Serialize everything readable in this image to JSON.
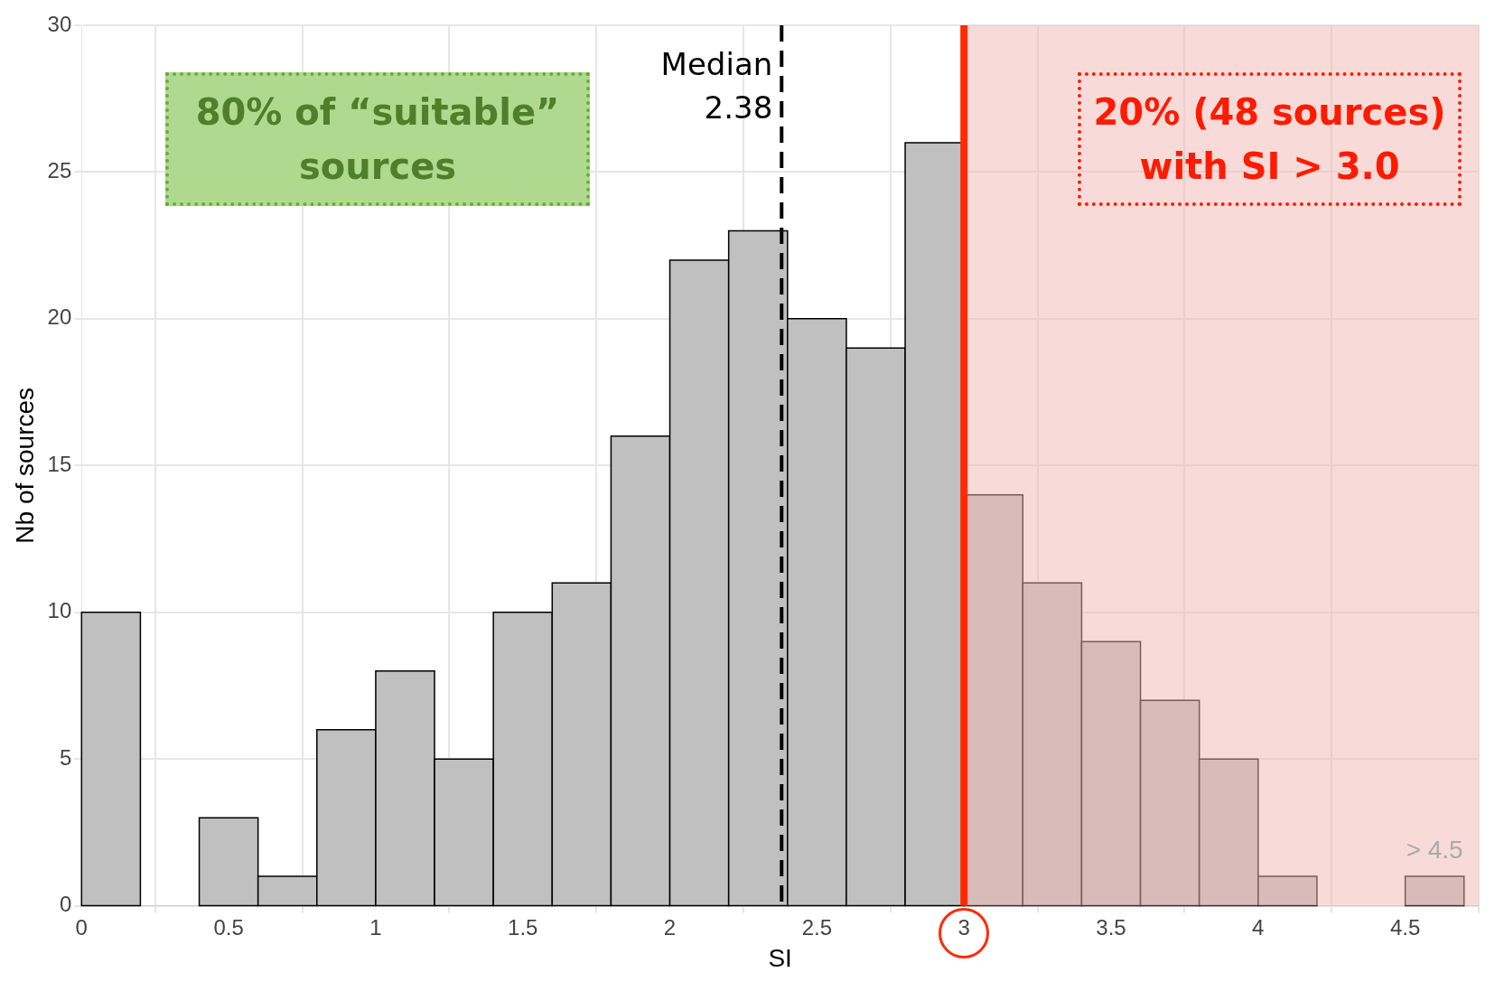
{
  "chart_data": {
    "type": "histogram",
    "xlabel": "SI",
    "ylabel": "Nb of sources",
    "bins": [
      0,
      0.2,
      0.4,
      0.6,
      0.8,
      1.0,
      1.2,
      1.4,
      1.6,
      1.8,
      2.0,
      2.2,
      2.4,
      2.6,
      2.8,
      3.0,
      3.2,
      3.4,
      3.6,
      3.8,
      4.0,
      4.2,
      4.5,
      4.7
    ],
    "values": [
      10,
      0,
      3,
      1,
      6,
      8,
      5,
      10,
      11,
      16,
      22,
      23,
      20,
      19,
      26,
      14,
      11,
      9,
      7,
      5,
      1,
      0,
      1
    ],
    "color": "#c0c0c0",
    "xlim": [
      0,
      4.75
    ],
    "xticks": [
      0,
      0.5,
      1,
      1.5,
      2,
      2.5,
      3,
      3.5,
      4,
      4.5
    ],
    "ylim": [
      0,
      30
    ],
    "yticks": [
      0,
      5,
      10,
      15,
      20,
      25,
      30
    ],
    "grid": true,
    "ref_lines": [
      {
        "axis": "x",
        "value": 2.38,
        "label": "Median 2.38",
        "color": "#000000",
        "line_style": "dashed"
      },
      {
        "axis": "x",
        "value": 3,
        "color": "#ff2a00",
        "line_style": "solid"
      }
    ],
    "bands": [
      {
        "axis": "x",
        "from": 3,
        "to": 4.75,
        "color": "#f2b8b2"
      }
    ],
    "annotations": [
      "80% of “suitable” sources",
      "20% (48 sources) with SI > 3.0",
      {
        "text": "> 4.5",
        "x": 4.6,
        "y": 1
      }
    ]
  }
}
